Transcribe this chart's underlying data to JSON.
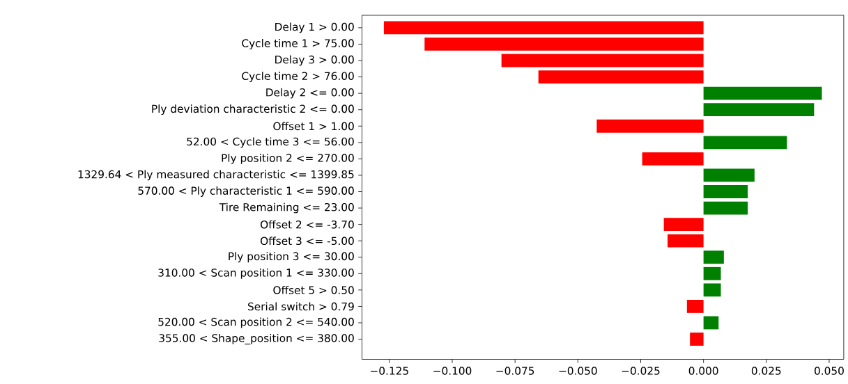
{
  "chart_data": {
    "type": "bar",
    "orientation": "horizontal",
    "categories": [
      "Delay 1 > 0.00",
      "Cycle time 1 > 75.00",
      "Delay 3 > 0.00",
      "Cycle time 2 > 76.00",
      "Delay 2 <= 0.00",
      "Ply deviation characteristic 2 <= 0.00",
      "Offset 1 > 1.00",
      "52.00 < Cycle time 3 <= 56.00",
      "Ply position 2 <= 270.00",
      "1329.64 < Ply measured characteristic <= 1399.85",
      "570.00 < Ply characteristic 1 <= 590.00",
      "Tire Remaining <= 23.00",
      "Offset 2 <= -3.70",
      "Offset 3 <= -5.00",
      "Ply position 3 <= 30.00",
      "310.00 < Scan position 1 <= 330.00",
      "Offset 5 > 0.50",
      "Serial switch > 0.79",
      "520.00 < Scan position 2 <= 540.00",
      "355.00 < Shape_position <= 380.00"
    ],
    "values": [
      -0.1272,
      -0.111,
      -0.0804,
      -0.0657,
      0.0471,
      0.044,
      -0.0425,
      0.0332,
      -0.0244,
      0.0203,
      0.0176,
      0.0176,
      -0.0158,
      -0.0143,
      0.0081,
      0.0069,
      0.0069,
      -0.0066,
      0.006,
      -0.0054
    ],
    "colors": [
      "#ff0000",
      "#ff0000",
      "#ff0000",
      "#ff0000",
      "#008000",
      "#008000",
      "#ff0000",
      "#008000",
      "#ff0000",
      "#008000",
      "#008000",
      "#008000",
      "#ff0000",
      "#ff0000",
      "#008000",
      "#008000",
      "#008000",
      "#ff0000",
      "#008000",
      "#ff0000"
    ],
    "xlim": [
      -0.1359,
      0.0558
    ],
    "xticks": [
      {
        "value": -0.125,
        "label": "−0.125"
      },
      {
        "value": -0.1,
        "label": "−0.100"
      },
      {
        "value": -0.075,
        "label": "−0.075"
      },
      {
        "value": -0.05,
        "label": "−0.050"
      },
      {
        "value": -0.025,
        "label": "−0.025"
      },
      {
        "value": 0,
        "label": "0.000"
      },
      {
        "value": 0.025,
        "label": "0.025"
      },
      {
        "value": 0.05,
        "label": "0.050"
      }
    ]
  }
}
